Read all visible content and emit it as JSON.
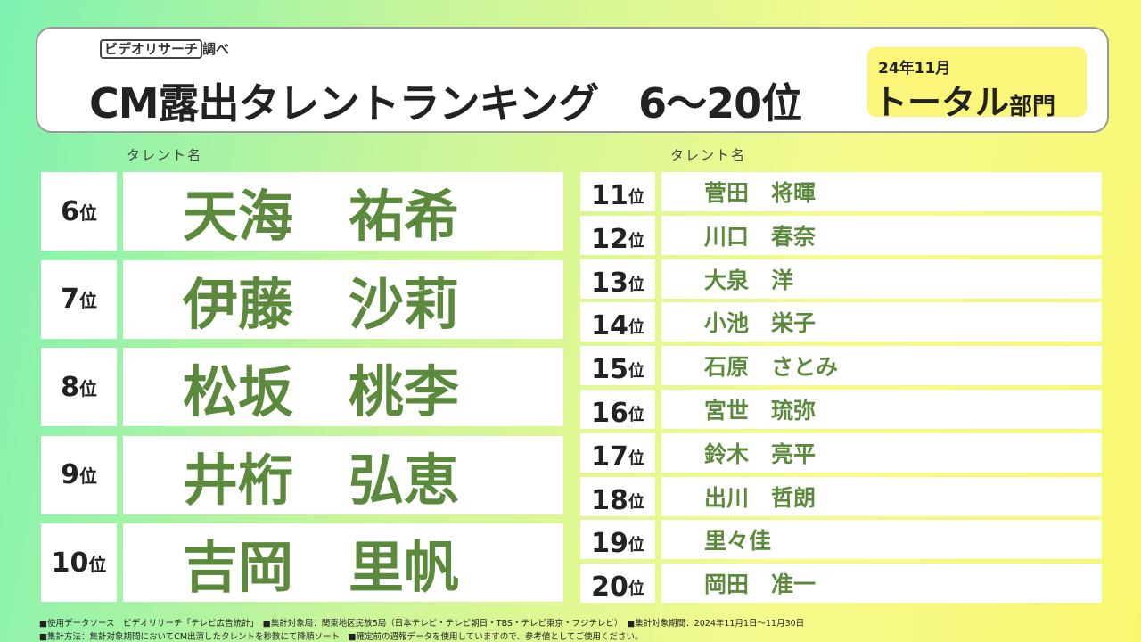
{
  "header": {
    "logo": "ビデオリサーチ",
    "logo_suffix": "調べ",
    "title": "CM露出タレントランキング　6～20位",
    "badge_period": "24年11月",
    "badge_category": "トータル",
    "badge_suffix": "部門"
  },
  "column_label": "タレント名",
  "rank_suffix": "位",
  "top_rows": [
    {
      "rank": "6",
      "name": "天海　祐希"
    },
    {
      "rank": "7",
      "name": "伊藤　沙莉"
    },
    {
      "rank": "8",
      "name": "松坂　桃李"
    },
    {
      "rank": "9",
      "name": "井桁　弘恵"
    },
    {
      "rank": "10",
      "name": "吉岡　里帆"
    }
  ],
  "rows": [
    {
      "rank": "11",
      "name": "菅田　将暉"
    },
    {
      "rank": "12",
      "name": "川口　春奈"
    },
    {
      "rank": "13",
      "name": "大泉　洋"
    },
    {
      "rank": "14",
      "name": "小池　栄子"
    },
    {
      "rank": "15",
      "name": "石原　さとみ"
    },
    {
      "rank": "16",
      "name": "宮世　琉弥"
    },
    {
      "rank": "17",
      "name": "鈴木　亮平"
    },
    {
      "rank": "18",
      "name": "出川　哲朗"
    },
    {
      "rank": "19",
      "name": "里々佳"
    },
    {
      "rank": "20",
      "name": "岡田　准一"
    }
  ],
  "footer": [
    "■使用データソース　ビデオリサーチ「テレビ広告統計」　■集計対象局：関東地区民放5局（日本テレビ・テレビ朝日・TBS・テレビ東京・フジテレビ）　■集計対象期間：2024年11月1日～11月30日",
    "■集計方法：集計対象期間においてCM出演したタレントを秒数にて降順ソート　■確定前の週報データを使用していますので、参考値としてご使用ください。"
  ]
}
